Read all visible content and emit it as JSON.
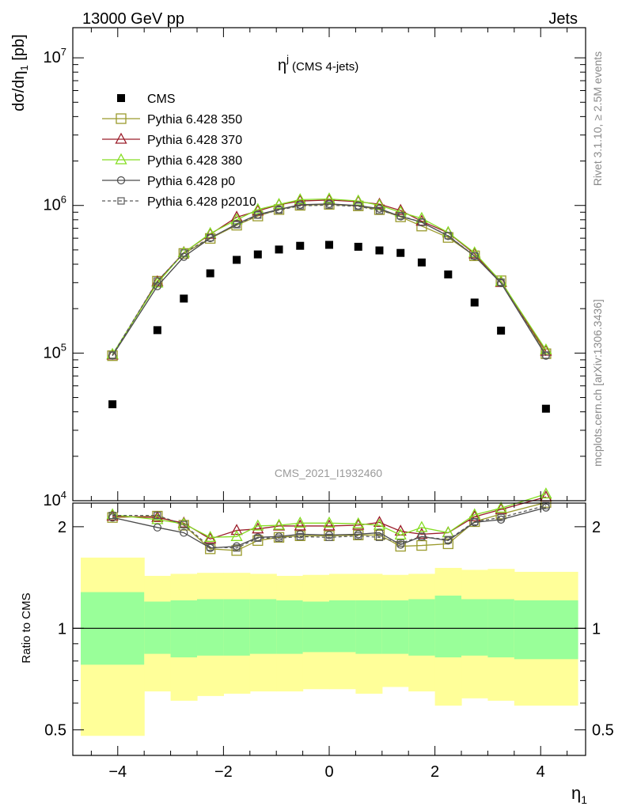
{
  "header": {
    "left": "13000 GeV pp",
    "right": "Jets"
  },
  "side_labels": {
    "rivet": "Rivet 3.1.10, ≥ 2.5M events",
    "mcplots": "mcplots.cern.ch [arXiv:1306.3436]"
  },
  "chart_data": {
    "type": "scatter",
    "title_main": "η",
    "title_sup": "j",
    "title_suffix": "(CMS 4-jets)",
    "watermark": "CMS_2021_I1932460",
    "xlabel_main": "η",
    "xlabel_sub": "1",
    "ylabel_main": "dσ/dη",
    "ylabel_sub": "1",
    "ylabel_unit": " [pb]",
    "ratio_ylabel": "Ratio to CMS",
    "xlim": [
      -4.85,
      4.85
    ],
    "ylim": [
      10000,
      16000000
    ],
    "yscale": "log",
    "ratio_ylim": [
      0.42,
      2.35
    ],
    "ratio_yscale": "log",
    "x_ticks": [
      -4,
      -2,
      0,
      2,
      4
    ],
    "x_tick_labels": [
      "−4",
      "−2",
      "0",
      "2",
      "4"
    ],
    "y_ticks": [
      {
        "value": 10000,
        "base": "10",
        "exp": "4"
      },
      {
        "value": 100000,
        "base": "10",
        "exp": "5"
      },
      {
        "value": 1000000,
        "base": "10",
        "exp": "6"
      },
      {
        "value": 10000000,
        "base": "10",
        "exp": "7"
      }
    ],
    "ratio_ticks": [
      {
        "value": 0.5,
        "label": "0.5"
      },
      {
        "value": 1,
        "label": "1"
      },
      {
        "value": 2,
        "label": "2"
      }
    ],
    "x": [
      -4.1,
      -3.25,
      -2.75,
      -2.25,
      -1.75,
      -1.35,
      -0.95,
      -0.55,
      0.0,
      0.55,
      0.95,
      1.35,
      1.75,
      2.25,
      2.75,
      3.25,
      4.1
    ],
    "bin_edges": [
      -4.7,
      -3.5,
      -3.0,
      -2.5,
      -2.0,
      -1.5,
      -1.0,
      -0.5,
      0.0,
      0.5,
      1.0,
      1.5,
      2.0,
      2.5,
      3.0,
      3.5,
      4.7
    ],
    "band_inner_low": [
      0.78,
      0.84,
      0.82,
      0.83,
      0.83,
      0.84,
      0.84,
      0.85,
      0.85,
      0.84,
      0.84,
      0.83,
      0.82,
      0.83,
      0.82,
      0.81,
      0.76
    ],
    "band_inner_high": [
      1.28,
      1.2,
      1.21,
      1.22,
      1.22,
      1.22,
      1.21,
      1.2,
      1.21,
      1.21,
      1.21,
      1.22,
      1.25,
      1.22,
      1.22,
      1.21,
      1.31
    ],
    "band_outer_low": [
      0.48,
      0.65,
      0.61,
      0.63,
      0.64,
      0.65,
      0.65,
      0.66,
      0.66,
      0.64,
      0.67,
      0.65,
      0.59,
      0.62,
      0.61,
      0.59,
      0.43
    ],
    "band_outer_high": [
      1.62,
      1.43,
      1.45,
      1.46,
      1.46,
      1.45,
      1.43,
      1.44,
      1.45,
      1.45,
      1.44,
      1.45,
      1.51,
      1.49,
      1.5,
      1.47,
      1.75
    ],
    "series": [
      {
        "name": "CMS",
        "color": "#000000",
        "marker": "filled-square",
        "line": "none",
        "values": [
          45000,
          143000,
          234000,
          347000,
          428000,
          466000,
          503000,
          533000,
          541000,
          525000,
          496000,
          477000,
          411000,
          341000,
          220000,
          142000,
          42000
        ]
      },
      {
        "name": "Pythia 6.428 350",
        "color": "#9a9a2c",
        "marker": "open-square",
        "line": "solid",
        "values": [
          96000,
          307000,
          473000,
          598000,
          735000,
          848000,
          938000,
          1002000,
          1017000,
          993000,
          936000,
          837000,
          725000,
          607000,
          456000,
          309000,
          99000
        ],
        "ratio": [
          2.13,
          2.15,
          2.02,
          1.72,
          1.7,
          1.82,
          1.86,
          1.88,
          1.88,
          1.89,
          1.89,
          1.75,
          1.76,
          1.78,
          2.07,
          2.18,
          2.36
        ]
      },
      {
        "name": "Pythia 6.428 370",
        "color": "#9b1d2a",
        "marker": "open-triangle",
        "line": "solid",
        "values": [
          97000,
          304000,
          480000,
          638000,
          833000,
          918000,
          1011000,
          1072000,
          1088000,
          1060000,
          1020000,
          925000,
          782000,
          653000,
          470000,
          301000,
          103000
        ],
        "ratio": [
          2.15,
          2.13,
          2.05,
          1.84,
          1.95,
          1.97,
          2.01,
          2.01,
          2.01,
          2.02,
          2.06,
          1.94,
          1.9,
          1.92,
          2.14,
          2.25,
          2.45
        ]
      },
      {
        "name": "Pythia 6.428 380",
        "color": "#85dd22",
        "marker": "open-triangle",
        "line": "solid",
        "values": [
          98000,
          298000,
          478000,
          646000,
          800000,
          938000,
          1016000,
          1094000,
          1107000,
          1072000,
          1003000,
          900000,
          817000,
          656000,
          478000,
          305000,
          105000
        ],
        "ratio": [
          2.17,
          2.1,
          2.04,
          1.86,
          1.87,
          2.01,
          2.02,
          2.05,
          2.05,
          2.04,
          2.02,
          1.89,
          1.99,
          1.92,
          2.17,
          2.27,
          2.5
        ]
      },
      {
        "name": "Pythia 6.428 p0",
        "color": "#4a4a4a",
        "marker": "open-circle",
        "line": "solid",
        "values": [
          96000,
          284000,
          449000,
          601000,
          750000,
          868000,
          940000,
          1012000,
          1025000,
          998000,
          952000,
          843000,
          770000,
          621000,
          454000,
          298000,
          96000
        ],
        "ratio": [
          2.13,
          1.99,
          1.92,
          1.73,
          1.75,
          1.86,
          1.87,
          1.9,
          1.89,
          1.9,
          1.92,
          1.77,
          1.87,
          1.82,
          2.06,
          2.1,
          2.28
        ]
      },
      {
        "name": "Pythia 6.428 p2010",
        "color": "#595959",
        "marker": "open-square-small",
        "line": "dashed",
        "values": [
          97000,
          308000,
          476000,
          605000,
          740000,
          860000,
          930000,
          994000,
          1005000,
          986000,
          925000,
          852000,
          768000,
          625000,
          455000,
          302000,
          97000
        ],
        "ratio": [
          2.16,
          2.16,
          2.03,
          1.74,
          1.73,
          1.85,
          1.85,
          1.87,
          1.86,
          1.88,
          1.86,
          1.79,
          1.87,
          1.83,
          2.07,
          2.13,
          2.31
        ]
      }
    ]
  }
}
